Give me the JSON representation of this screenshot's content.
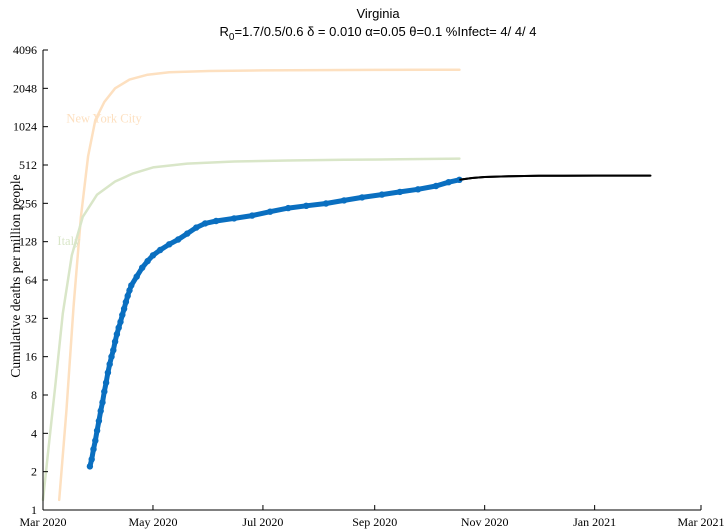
{
  "chart_data": {
    "type": "line",
    "title": "Virginia",
    "subtitle_parts": {
      "r_base": "R",
      "r_sub": "0",
      "rest": "=1.7/0.5/0.6  δ = 0.010  α=0.05  θ=0.1  %Infect= 4/ 4/ 4"
    },
    "xlabel": "",
    "ylabel": "Cumulative deaths per million people",
    "x_ticks": [
      "2020-03-01",
      "2020-05-01",
      "2020-07-01",
      "2020-09-01",
      "2020-11-01",
      "2021-01-01",
      "2021-03-01"
    ],
    "x_tick_labels": [
      "Mar 2020",
      "May 2020",
      "Jul 2020",
      "Sep 2020",
      "Nov 2020",
      "Jan 2021",
      "Mar 2021"
    ],
    "xlim": [
      "2020-03-01",
      "2021-03-01"
    ],
    "y_scale": "log2",
    "ylim": [
      1,
      4096
    ],
    "y_ticks": [
      1,
      2,
      4,
      8,
      16,
      32,
      64,
      128,
      256,
      512,
      1024,
      2048,
      4096
    ],
    "y_tick_labels": [
      "1",
      "2",
      "4",
      "8",
      "16",
      "32",
      "64",
      "128",
      "256",
      "512",
      "1024",
      "2048",
      "4096"
    ],
    "grid": false,
    "colors": {
      "nyc": "#fde0c0",
      "italy": "#d9e6c8",
      "observed": "#0a6fc0",
      "projection": "#000000"
    },
    "series": [
      {
        "name": "New York City",
        "style": "line",
        "points": [
          [
            "2020-03-10",
            1.2
          ],
          [
            "2020-03-14",
            6
          ],
          [
            "2020-03-18",
            40
          ],
          [
            "2020-03-22",
            200
          ],
          [
            "2020-03-26",
            600
          ],
          [
            "2020-03-30",
            1150
          ],
          [
            "2020-04-04",
            1600
          ],
          [
            "2020-04-10",
            2050
          ],
          [
            "2020-04-18",
            2400
          ],
          [
            "2020-04-28",
            2620
          ],
          [
            "2020-05-10",
            2740
          ],
          [
            "2020-06-01",
            2800
          ],
          [
            "2020-07-01",
            2830
          ],
          [
            "2020-08-01",
            2850
          ],
          [
            "2020-09-01",
            2860
          ],
          [
            "2020-10-01",
            2870
          ],
          [
            "2020-10-18",
            2870
          ]
        ]
      },
      {
        "name": "Italy",
        "style": "line",
        "points": [
          [
            "2020-03-01",
            1.2
          ],
          [
            "2020-03-04",
            3
          ],
          [
            "2020-03-08",
            10
          ],
          [
            "2020-03-12",
            35
          ],
          [
            "2020-03-17",
            100
          ],
          [
            "2020-03-23",
            200
          ],
          [
            "2020-03-31",
            300
          ],
          [
            "2020-04-10",
            380
          ],
          [
            "2020-04-20",
            440
          ],
          [
            "2020-05-01",
            490
          ],
          [
            "2020-05-20",
            525
          ],
          [
            "2020-06-15",
            545
          ],
          [
            "2020-07-15",
            555
          ],
          [
            "2020-08-15",
            562
          ],
          [
            "2020-09-15",
            568
          ],
          [
            "2020-10-18",
            575
          ]
        ]
      },
      {
        "name": "Virginia observed",
        "style": "markers-line",
        "points": [
          [
            "2020-03-27",
            2.2
          ],
          [
            "2020-03-28",
            2.5
          ],
          [
            "2020-03-29",
            3
          ],
          [
            "2020-03-30",
            3.5
          ],
          [
            "2020-03-31",
            4.2
          ],
          [
            "2020-04-01",
            5
          ],
          [
            "2020-04-02",
            6
          ],
          [
            "2020-04-03",
            7
          ],
          [
            "2020-04-04",
            8.5
          ],
          [
            "2020-04-05",
            10
          ],
          [
            "2020-04-06",
            12
          ],
          [
            "2020-04-07",
            14
          ],
          [
            "2020-04-08",
            16
          ],
          [
            "2020-04-09",
            18
          ],
          [
            "2020-04-10",
            21
          ],
          [
            "2020-04-11",
            24
          ],
          [
            "2020-04-12",
            27
          ],
          [
            "2020-04-13",
            30
          ],
          [
            "2020-04-14",
            34
          ],
          [
            "2020-04-15",
            38
          ],
          [
            "2020-04-16",
            43
          ],
          [
            "2020-04-17",
            48
          ],
          [
            "2020-04-18",
            53
          ],
          [
            "2020-04-19",
            58
          ],
          [
            "2020-04-22",
            68
          ],
          [
            "2020-04-25",
            80
          ],
          [
            "2020-04-28",
            90
          ],
          [
            "2020-05-01",
            100
          ],
          [
            "2020-05-05",
            110
          ],
          [
            "2020-05-10",
            122
          ],
          [
            "2020-05-15",
            133
          ],
          [
            "2020-05-20",
            148
          ],
          [
            "2020-05-25",
            165
          ],
          [
            "2020-05-30",
            178
          ],
          [
            "2020-06-05",
            186
          ],
          [
            "2020-06-15",
            195
          ],
          [
            "2020-06-25",
            205
          ],
          [
            "2020-07-05",
            220
          ],
          [
            "2020-07-15",
            235
          ],
          [
            "2020-07-25",
            245
          ],
          [
            "2020-08-05",
            255
          ],
          [
            "2020-08-15",
            270
          ],
          [
            "2020-08-25",
            285
          ],
          [
            "2020-09-05",
            300
          ],
          [
            "2020-09-15",
            315
          ],
          [
            "2020-09-25",
            330
          ],
          [
            "2020-10-05",
            350
          ],
          [
            "2020-10-12",
            375
          ],
          [
            "2020-10-18",
            392
          ]
        ]
      },
      {
        "name": "Virginia projection",
        "style": "line",
        "points": [
          [
            "2020-10-18",
            392
          ],
          [
            "2020-10-25",
            405
          ],
          [
            "2020-11-01",
            412
          ],
          [
            "2020-11-15",
            418
          ],
          [
            "2020-12-01",
            421
          ],
          [
            "2020-12-15",
            422
          ],
          [
            "2021-01-01",
            423
          ],
          [
            "2021-01-20",
            423
          ],
          [
            "2021-02-01",
            423
          ]
        ]
      }
    ],
    "annotations": [
      {
        "text": "New York City",
        "x": "2020-03-14",
        "y": 1100,
        "color": "#fde0c0"
      },
      {
        "text": "Italy",
        "x": "2020-03-09",
        "y": 120,
        "color": "#d9e6c8"
      }
    ]
  }
}
